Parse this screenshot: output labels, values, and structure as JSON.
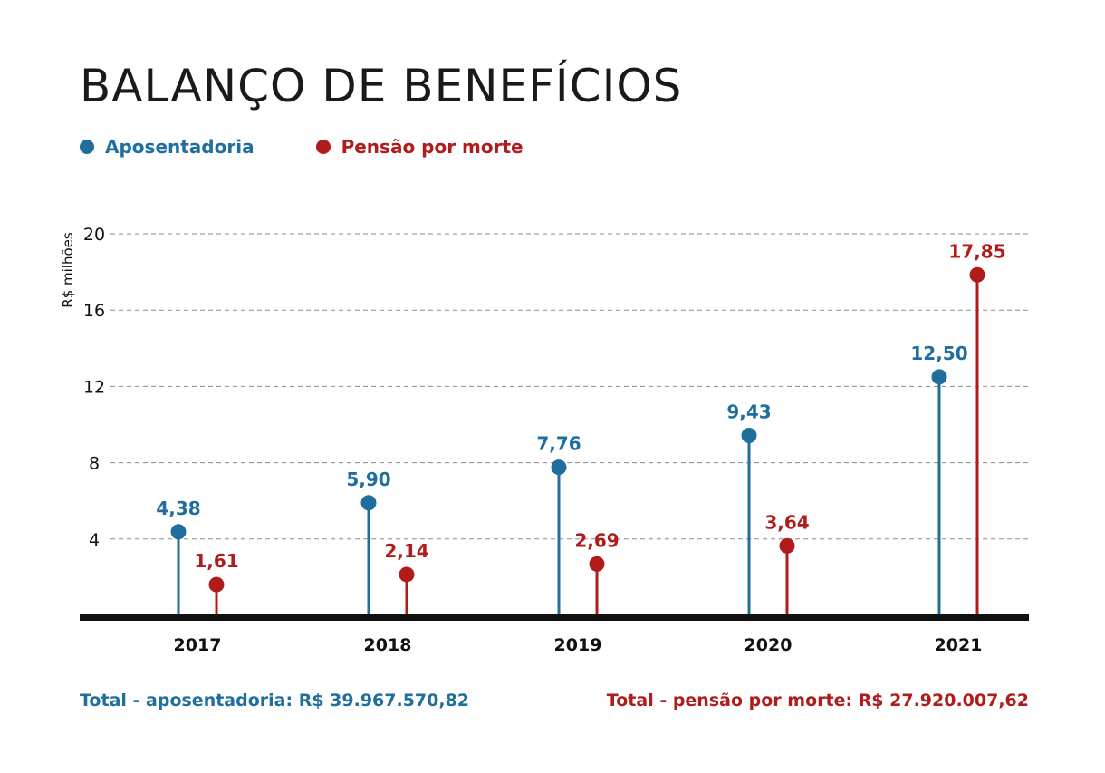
{
  "title": "BALANÇO DE BENEFÍCIOS",
  "colors": {
    "aposentadoria": "#1f6e9e",
    "pensao": "#b01c1c",
    "axis": "#111111",
    "grid": "#8a8a8a"
  },
  "legend": [
    {
      "label": "Aposentadoria",
      "color": "#1f6e9e"
    },
    {
      "label": "Pensão por morte",
      "color": "#b01c1c"
    }
  ],
  "totals": {
    "aposentadoria": "Total - aposentadoria: R$ 39.967.570,82",
    "pensao": "Total - pensão por morte: R$ 27.920.007,62"
  },
  "chart_data": {
    "type": "lollipop",
    "categories": [
      "2017",
      "2018",
      "2019",
      "2020",
      "2021"
    ],
    "series": [
      {
        "name": "Aposentadoria",
        "color": "#1f6e9e",
        "values": [
          4.38,
          5.9,
          7.76,
          9.43,
          12.5
        ],
        "labels": [
          "4,38",
          "5,90",
          "7,76",
          "9,43",
          "12,50"
        ]
      },
      {
        "name": "Pensão por morte",
        "color": "#b01c1c",
        "values": [
          1.61,
          2.14,
          2.69,
          3.64,
          17.85
        ],
        "labels": [
          "1,61",
          "2,14",
          "2,69",
          "3,64",
          "17,85"
        ]
      }
    ],
    "ylabel": "R$ milhões",
    "ylim": [
      0,
      20
    ],
    "yticks": [
      4,
      8,
      12,
      16,
      20
    ],
    "ytick_labels": [
      "4",
      "8",
      "12",
      "16",
      "20"
    ],
    "grid": true,
    "legend_position": "top-left"
  }
}
